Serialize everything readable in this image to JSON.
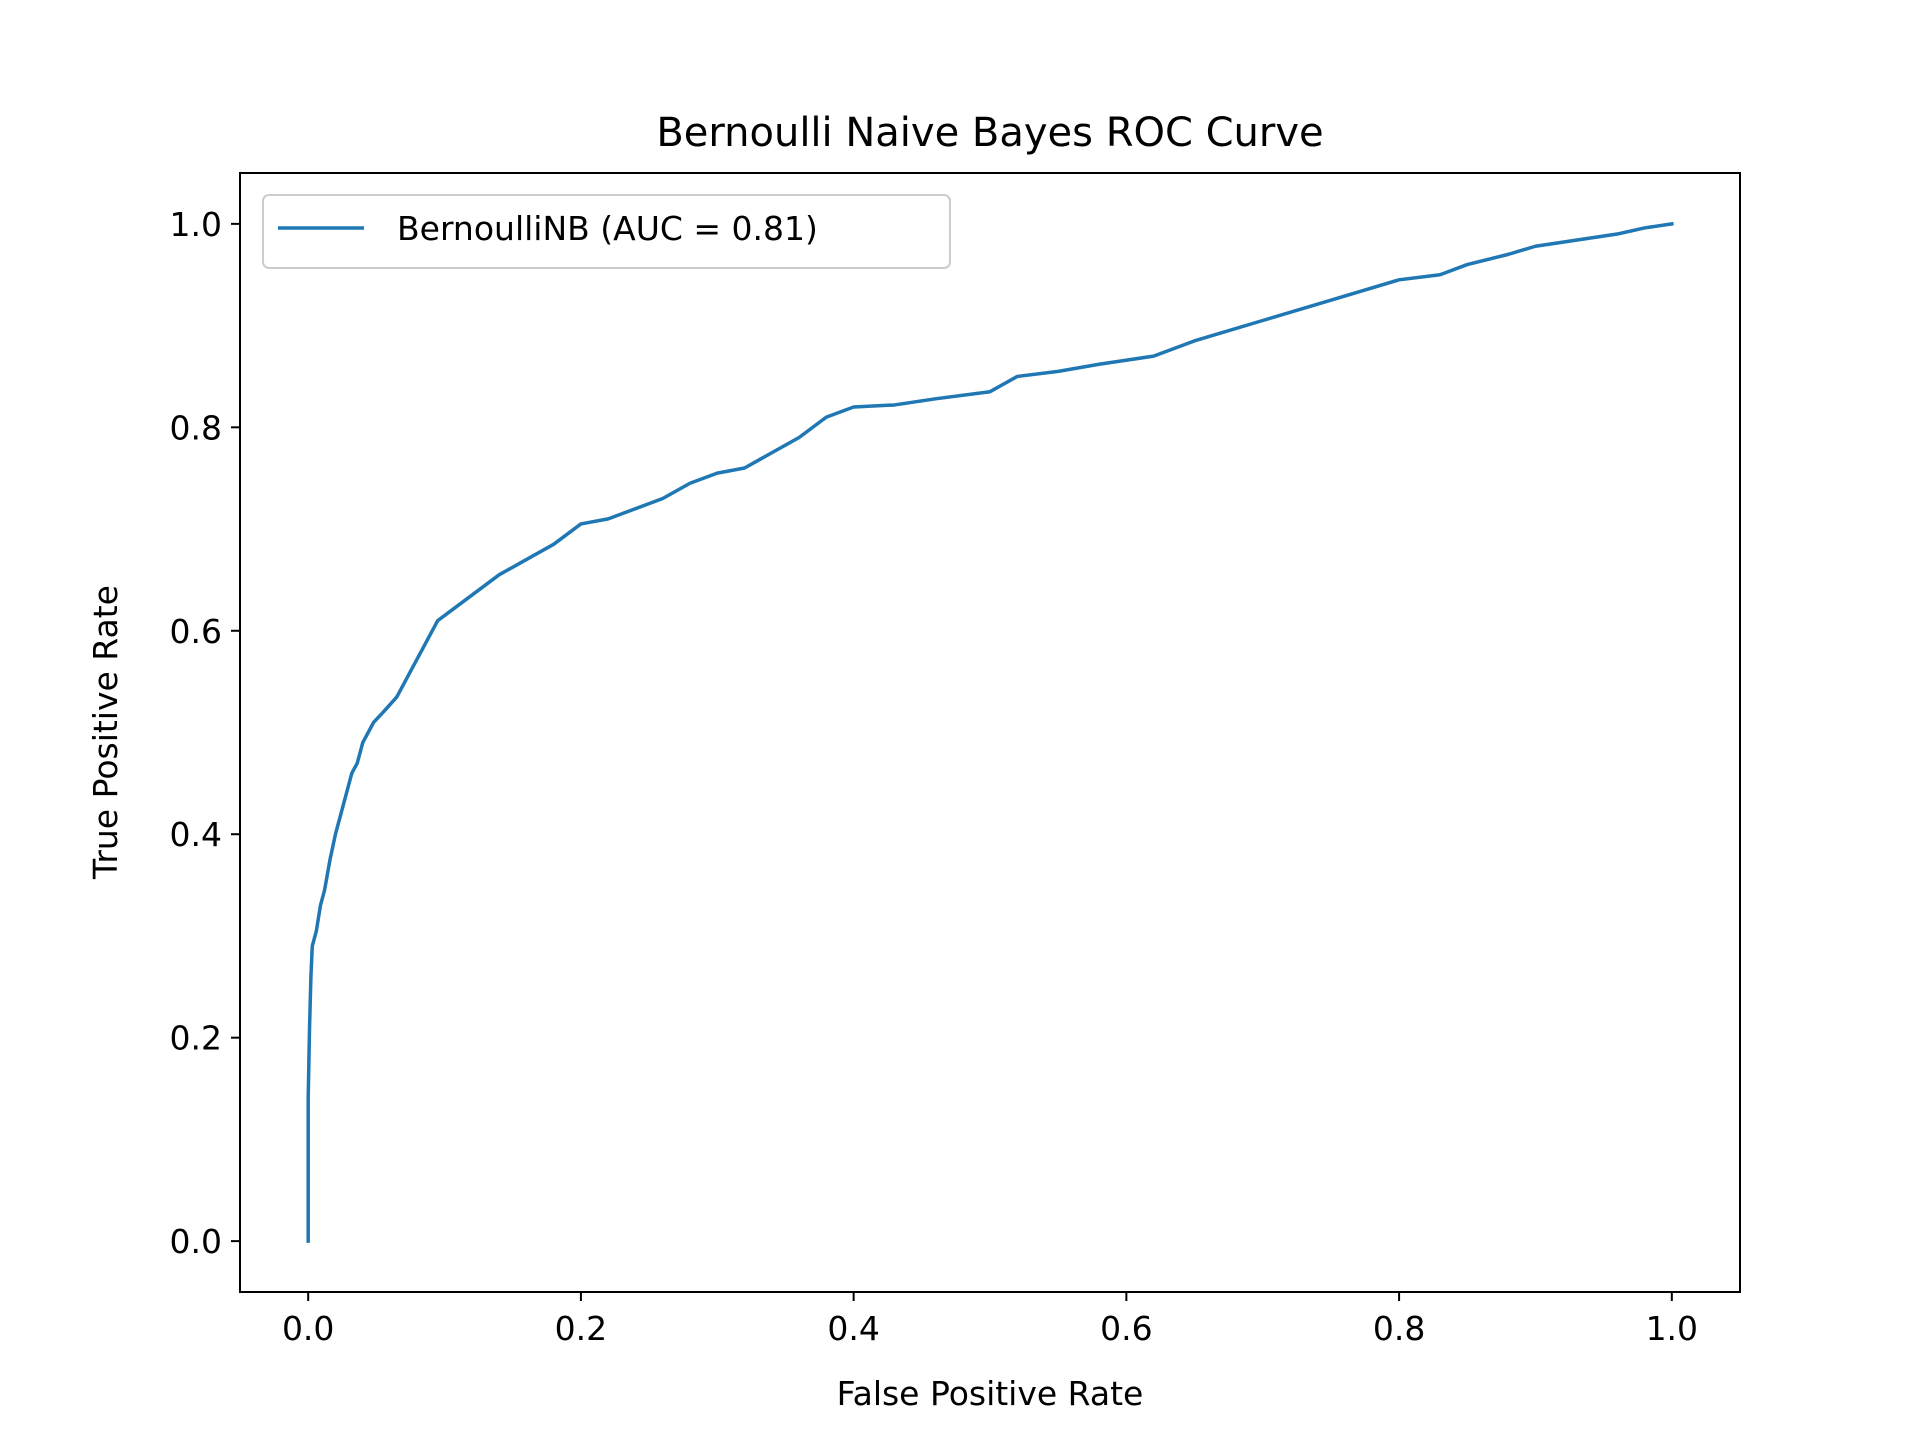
{
  "chart_data": {
    "type": "line",
    "title": "Bernoulli Naive Bayes ROC Curve",
    "xlabel": "False Positive Rate",
    "ylabel": "True Positive Rate",
    "xlim": [
      -0.05,
      1.05
    ],
    "ylim": [
      -0.05,
      1.05
    ],
    "xticks": [
      "0.0",
      "0.2",
      "0.4",
      "0.6",
      "0.8",
      "1.0"
    ],
    "yticks": [
      "0.0",
      "0.2",
      "0.4",
      "0.6",
      "0.8",
      "1.0"
    ],
    "grid": false,
    "legend_position": "upper-left",
    "series": [
      {
        "name": "BernoulliNB (AUC = 0.81)",
        "color": "#1f77b4",
        "x": [
          0.0,
          0.0,
          0.001,
          0.002,
          0.003,
          0.004,
          0.006,
          0.009,
          0.012,
          0.016,
          0.02,
          0.024,
          0.028,
          0.032,
          0.036,
          0.04,
          0.044,
          0.048,
          0.055,
          0.065,
          0.075,
          0.085,
          0.095,
          0.105,
          0.12,
          0.14,
          0.16,
          0.18,
          0.2,
          0.22,
          0.24,
          0.26,
          0.28,
          0.3,
          0.32,
          0.34,
          0.36,
          0.38,
          0.4,
          0.43,
          0.46,
          0.5,
          0.52,
          0.55,
          0.58,
          0.62,
          0.65,
          0.7,
          0.75,
          0.8,
          0.83,
          0.85,
          0.88,
          0.9,
          0.93,
          0.96,
          0.98,
          1.0
        ],
        "y": [
          0.0,
          0.14,
          0.21,
          0.26,
          0.29,
          0.295,
          0.305,
          0.33,
          0.345,
          0.375,
          0.4,
          0.42,
          0.44,
          0.46,
          0.47,
          0.49,
          0.5,
          0.51,
          0.52,
          0.535,
          0.56,
          0.585,
          0.61,
          0.62,
          0.635,
          0.655,
          0.67,
          0.685,
          0.705,
          0.71,
          0.72,
          0.73,
          0.745,
          0.755,
          0.76,
          0.775,
          0.79,
          0.81,
          0.82,
          0.822,
          0.828,
          0.835,
          0.85,
          0.855,
          0.862,
          0.87,
          0.885,
          0.905,
          0.925,
          0.945,
          0.95,
          0.96,
          0.97,
          0.978,
          0.984,
          0.99,
          0.996,
          1.0
        ]
      }
    ]
  }
}
